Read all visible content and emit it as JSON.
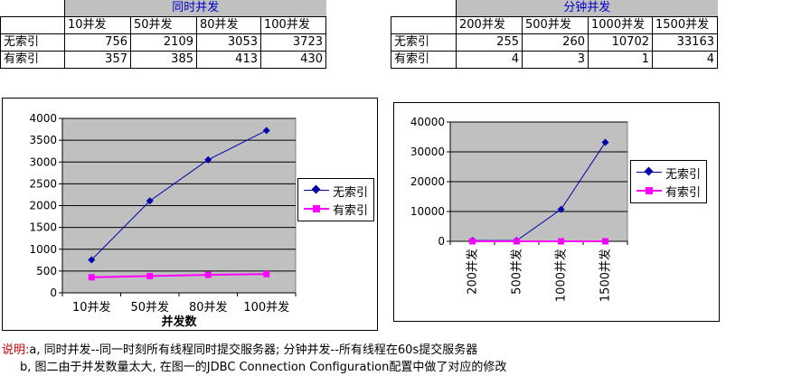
{
  "table1": {
    "title": "同时并发",
    "headers": [
      "10并发",
      "50并发",
      "80并发",
      "100并发"
    ],
    "rows": [
      {
        "label": "无索引",
        "values": [
          756,
          2109,
          3053,
          3723
        ]
      },
      {
        "label": "有索引",
        "values": [
          357,
          385,
          413,
          430
        ]
      }
    ]
  },
  "table2": {
    "title": "分钟并发",
    "headers": [
      "200并发",
      "500并发",
      "1000并发",
      "1500并发"
    ],
    "rows": [
      {
        "label": "无索引",
        "values": [
          255,
          260,
          10702,
          33163
        ]
      },
      {
        "label": "有索引",
        "values": [
          4,
          3,
          1,
          4
        ]
      }
    ]
  },
  "chart_data": [
    {
      "type": "line",
      "categories": [
        "10并发",
        "50并发",
        "80并发",
        "100并发"
      ],
      "series": [
        {
          "name": "无索引",
          "values": [
            756,
            2109,
            3053,
            3723
          ],
          "color": "#0000aa",
          "marker": "diamond"
        },
        {
          "name": "有索引",
          "values": [
            357,
            385,
            413,
            430
          ],
          "color": "#ff00ff",
          "marker": "square"
        }
      ],
      "xlabel": "并发数",
      "ylim": [
        0,
        4000
      ],
      "yticks": [
        0,
        500,
        1000,
        1500,
        2000,
        2500,
        3000,
        3500,
        4000
      ],
      "plot_background": "#c0c0c0",
      "grid": true,
      "legend": "right"
    },
    {
      "type": "line",
      "categories": [
        "200并发",
        "500并发",
        "1000并发",
        "1500并发"
      ],
      "series": [
        {
          "name": "无索引",
          "values": [
            255,
            260,
            10702,
            33163
          ],
          "color": "#0000aa",
          "marker": "diamond"
        },
        {
          "name": "有索引",
          "values": [
            4,
            3,
            1,
            4
          ],
          "color": "#ff00ff",
          "marker": "square"
        }
      ],
      "ylim": [
        0,
        40000
      ],
      "yticks": [
        0,
        10000,
        20000,
        30000,
        40000
      ],
      "plot_background": "#c0c0c0",
      "grid": true,
      "legend": "right",
      "xtick_rotation": "vertical"
    }
  ],
  "notes": {
    "prefix": "说明:",
    "line1": "a, 同时并发--同一时刻所有线程同时提交服务器;    分钟并发--所有线程在60s提交服务器",
    "line2": "b, 图二由于并发数量太大, 在图一的JDBC Connection Configuration配置中做了对应的修改"
  }
}
